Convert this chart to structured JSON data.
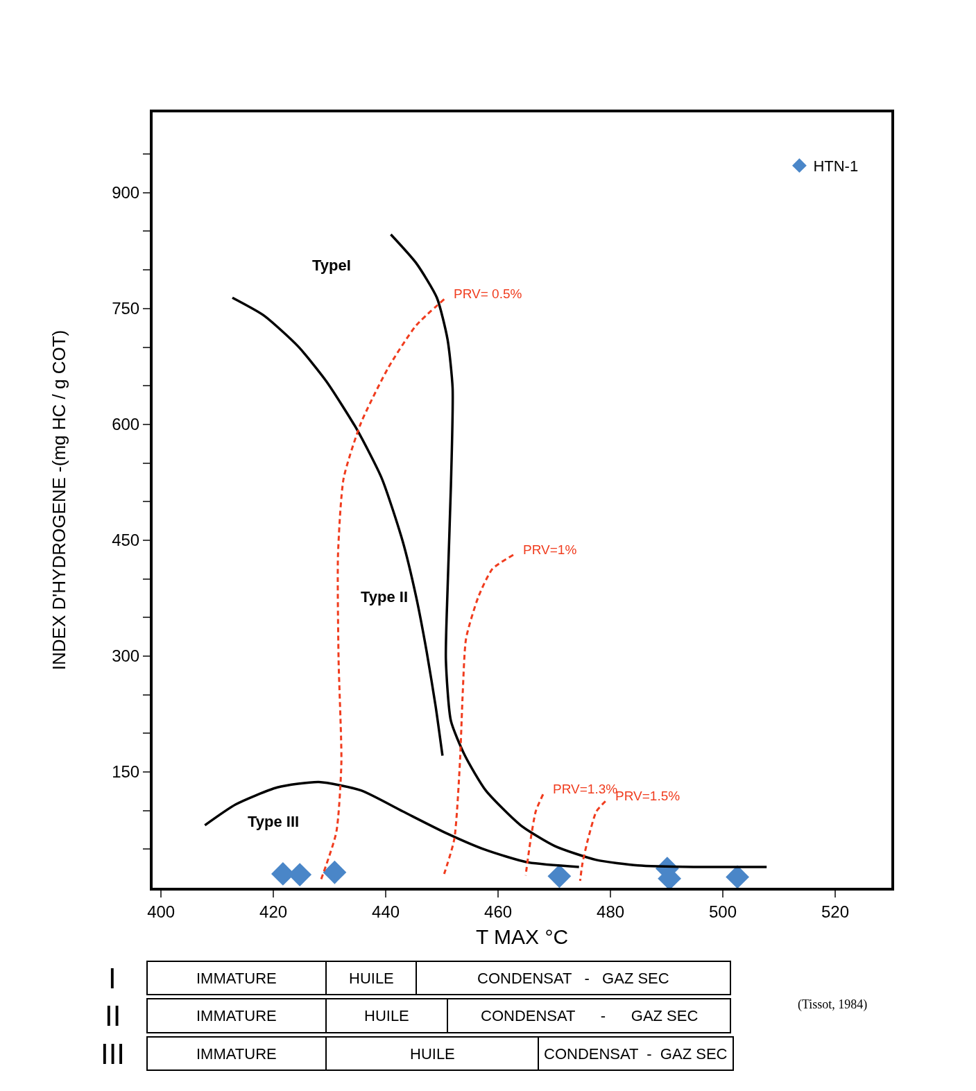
{
  "chart_data": {
    "type": "scatter",
    "xlabel": "T MAX °C",
    "ylabel": "INDEX D'HYDROGENE -(mg HC / g COT)",
    "xlim": [
      398.5,
      530
    ],
    "xticks": [
      400,
      420,
      440,
      460,
      480,
      500,
      520
    ],
    "ylim": [
      0,
      1004
    ],
    "yticks": [
      {
        "value": 50,
        "label": null
      },
      {
        "value": 100,
        "label": null
      },
      150,
      {
        "value": 200,
        "label": null
      },
      {
        "value": 250,
        "label": null
      },
      300,
      {
        "value": 350,
        "label": null
      },
      {
        "value": 400,
        "label": null
      },
      450,
      {
        "value": 500,
        "label": null
      },
      {
        "value": 550,
        "label": null
      },
      600,
      {
        "value": 650,
        "label": null
      },
      {
        "value": 700,
        "label": null
      },
      750,
      {
        "value": 800,
        "label": null
      },
      {
        "value": 850,
        "label": null
      },
      900,
      {
        "value": 950,
        "label": null
      }
    ],
    "legend": "top right",
    "series": [
      {
        "name": "HTN-1",
        "marker": "diamond",
        "color": "#4a86c8",
        "x": [
          421.7,
          424.7,
          430.9,
          470.9,
          490.1,
          490.5,
          502.6
        ],
        "values": [
          18,
          17,
          20,
          15,
          25,
          12,
          14
        ]
      },
      {
        "name": "TypeI",
        "type": "line",
        "marker": "none",
        "line_style": "solid",
        "color": "#000000",
        "x": [
          440.9,
          445.4,
          449.1,
          451,
          451.9,
          451.6,
          451,
          450.7,
          451.6,
          454.1,
          457.8,
          464,
          470.1,
          477.5,
          484.9,
          494.8,
          507.8
        ],
        "values": [
          846,
          809,
          764,
          710,
          647,
          521,
          386,
          296,
          216,
          171,
          126,
          81,
          54,
          36,
          29,
          27,
          27
        ]
      },
      {
        "name": "Type II",
        "type": "line",
        "marker": "none",
        "line_style": "solid",
        "color": "#000000",
        "x": [
          412.7,
          418.3,
          424.4,
          429.4,
          434.9,
          439.3,
          443,
          445.4,
          447.3,
          448.9,
          450.1
        ],
        "values": [
          764,
          741,
          701,
          656,
          593,
          530,
          449,
          377,
          305,
          234,
          171
        ]
      },
      {
        "name": "Type III",
        "type": "line",
        "marker": "none",
        "line_style": "solid",
        "color": "#000000",
        "x": [
          407.8,
          413.3,
          420.7,
          428.1,
          435.6,
          443,
          450.4,
          457.8,
          465.2,
          474.4
        ],
        "values": [
          81,
          108,
          130,
          137,
          126,
          99,
          72,
          49,
          33,
          27
        ]
      },
      {
        "name": "PRV= 0.5%",
        "type": "line",
        "marker": "none",
        "line_style": "dashed",
        "color": "#f03c1e",
        "x": [
          450.4,
          445.4,
          440.5,
          435.6,
          432.5,
          431.5,
          431.6,
          432.1,
          431.2,
          428.4
        ],
        "values": [
          762,
          728,
          674,
          602,
          530,
          431,
          296,
          162,
          72,
          9
        ]
      },
      {
        "name": "PRV=1%",
        "type": "line",
        "marker": "none",
        "line_style": "dashed",
        "color": "#f03c1e",
        "x": [
          462.7,
          459,
          456.5,
          454.3,
          453.7,
          453.2,
          452.2,
          450.4
        ],
        "values": [
          431,
          413,
          377,
          323,
          252,
          162,
          63,
          18
        ]
      },
      {
        "name": "PRV=1.3%",
        "type": "line",
        "marker": "none",
        "line_style": "dashed",
        "color": "#f03c1e",
        "x": [
          468,
          466.7,
          465.8,
          464.9
        ],
        "values": [
          121,
          99,
          63,
          16
        ]
      },
      {
        "name": "PRV=1.5%",
        "type": "line",
        "marker": "none",
        "line_style": "dashed",
        "color": "#f03c1e",
        "x": [
          479.1,
          477.5,
          476,
          475,
          474.6
        ],
        "values": [
          112,
          99,
          63,
          31,
          9
        ]
      }
    ],
    "annotations": [
      "(Tissot, 1984)",
      "I",
      "IMMATURE",
      "HUILE",
      "CONDENSAT   -   GAZ SEC",
      "II",
      "IMMATURE",
      "HUILE",
      "CONDENSAT      -      GAZ SEC",
      "III",
      "IMMATURE",
      "HUILE",
      "CONDENSAT  -  GAZ SEC"
    ]
  }
}
